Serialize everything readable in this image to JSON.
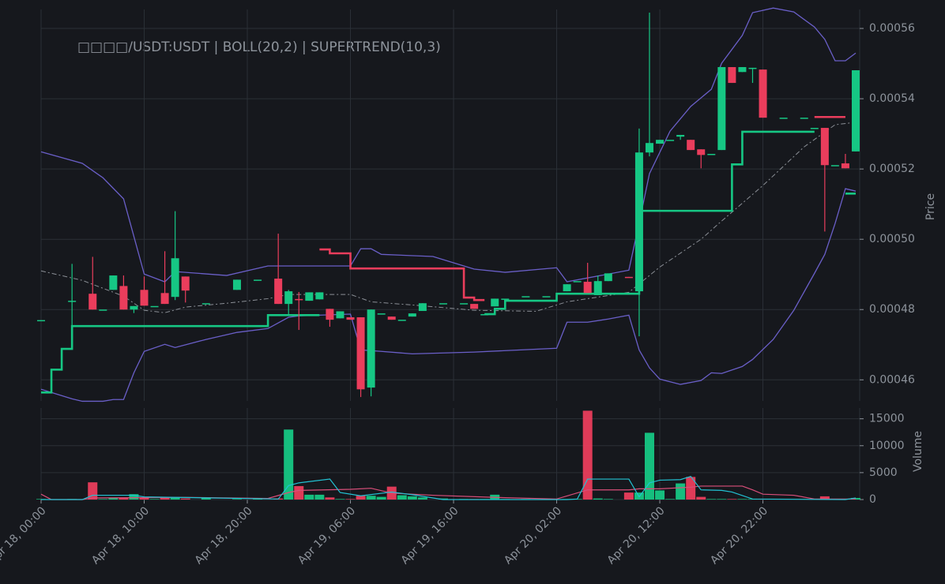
{
  "chart_data": {
    "type": "candlestick",
    "title": "□□□□/USDT:USDT | BOLL(20,2) | SUPERTREND(10,3)",
    "ylabel": "Price",
    "volume_label": "Volume",
    "up_color": "#16c784",
    "down_color": "#ea3d5c",
    "grid": true,
    "xlim": [
      "Apr 18, 00:00",
      "Apr 21, 07:00"
    ],
    "xticks": [
      "Apr 18, 00:00",
      "Apr 18, 10:00",
      "Apr 18, 20:00",
      "Apr 19, 06:00",
      "Apr 19, 16:00",
      "Apr 20, 02:00",
      "Apr 20, 12:00",
      "Apr 20, 22:00"
    ],
    "ylim": [
      0.000454,
      0.0005654
    ],
    "yticks": [
      0.00046,
      0.00048,
      {
        "value": 0.0005,
        "label": "0.00050"
      },
      0.00052,
      0.00054,
      0.00056
    ],
    "volume_ylim": [
      0,
      17000
    ],
    "volume_yticks": [
      0,
      5000,
      10000,
      15000
    ],
    "x": [
      "Apr 18, 00:00",
      "Apr 18, 03:00",
      "Apr 18, 05:00",
      "Apr 18, 06:00",
      "Apr 18, 07:00",
      "Apr 18, 08:00",
      "Apr 18, 09:00",
      "Apr 18, 10:00",
      "Apr 18, 11:00",
      "Apr 18, 12:00",
      "Apr 18, 13:00",
      "Apr 18, 14:00",
      "Apr 18, 16:00",
      "Apr 18, 19:00",
      "Apr 18, 21:00",
      "Apr 18, 23:00",
      "Apr 19, 00:00",
      "Apr 19, 01:00",
      "Apr 19, 02:00",
      "Apr 19, 03:00",
      "Apr 19, 04:00",
      "Apr 19, 05:00",
      "Apr 19, 06:00",
      "Apr 19, 07:00",
      "Apr 19, 08:00",
      "Apr 19, 09:00",
      "Apr 19, 10:00",
      "Apr 19, 11:00",
      "Apr 19, 12:00",
      "Apr 19, 13:00",
      "Apr 19, 15:00",
      "Apr 19, 17:00",
      "Apr 19, 18:00",
      "Apr 19, 19:00",
      "Apr 19, 20:00",
      "Apr 19, 21:00",
      "Apr 19, 23:00",
      "Apr 20, 01:00",
      "Apr 20, 03:00",
      "Apr 20, 04:00",
      "Apr 20, 05:00",
      "Apr 20, 06:00",
      "Apr 20, 07:00",
      "Apr 20, 09:00",
      "Apr 20, 10:00",
      "Apr 20, 11:00",
      "Apr 20, 12:00",
      "Apr 20, 13:00",
      "Apr 20, 14:00",
      "Apr 20, 15:00",
      "Apr 20, 16:00",
      "Apr 20, 17:00",
      "Apr 20, 18:00",
      "Apr 20, 19:00",
      "Apr 20, 20:00",
      "Apr 20, 21:00",
      "Apr 20, 22:00",
      "Apr 21, 00:00",
      "Apr 21, 02:00",
      "Apr 21, 03:00",
      "Apr 21, 04:00",
      "Apr 21, 05:00",
      "Apr 21, 06:00",
      "Apr 21, 07:00"
    ],
    "open": [
      0.000477,
      0.0004825,
      0.0004845,
      0.00048,
      0.0004856,
      0.0004867,
      0.00048,
      0.0004856,
      0.000481,
      0.0004847,
      0.0004836,
      0.0004894,
      0.0004818,
      0.0004856,
      0.0004885,
      0.0004888,
      0.0004816,
      0.000483,
      0.0004825,
      0.0004829,
      0.0004802,
      0.0004775,
      0.0004778,
      0.0004778,
      0.0004578,
      0.0004789,
      0.000478,
      0.0004771,
      0.000478,
      0.0004796,
      0.0004818,
      0.0004818,
      0.0004816,
      0.0004787,
      0.0004809,
      0.0004831,
      0.0004838,
      0.0004838,
      0.0004852,
      0.0004881,
      0.0004879,
      0.0004841,
      0.0004881,
      0.0004893,
      0.0004852,
      0.0005247,
      0.0005272,
      0.0005283,
      0.0005292,
      0.0005283,
      0.0005256,
      0.0005243,
      0.0005254,
      0.000549,
      0.0005476,
      0.0005485,
      0.0005483,
      0.0005346,
      0.0005346,
      0.0005317,
      0.0005317,
      0.0005211,
      0.0005216,
      0.000525
    ],
    "high": [
      0.000477,
      0.000493,
      0.000495,
      0.00048,
      0.0004897,
      0.0004897,
      0.000481,
      0.0004894,
      0.000481,
      0.0004966,
      0.000508,
      0.0004894,
      0.0004818,
      0.0004885,
      0.0004885,
      0.0005016,
      0.0004856,
      0.000485,
      0.0004849,
      0.0004849,
      0.0004802,
      0.0004795,
      0.0004778,
      0.0004778,
      0.00048,
      0.0004789,
      0.000478,
      0.0004771,
      0.0004789,
      0.0004818,
      0.0004818,
      0.0004818,
      0.0004816,
      0.0004787,
      0.0004831,
      0.0004831,
      0.0004838,
      0.0004838,
      0.0004872,
      0.0004881,
      0.0004933,
      0.0004897,
      0.0004903,
      0.0004893,
      0.0005315,
      0.0005645,
      0.0005283,
      0.0005283,
      0.0005297,
      0.0005283,
      0.0005256,
      0.0005243,
      0.000549,
      0.000549,
      0.000549,
      0.0005488,
      0.0005483,
      0.0005346,
      0.0005346,
      0.0005317,
      0.0005317,
      0.0005211,
      0.0005243,
      0.0005481
    ],
    "low": [
      0.000477,
      0.0004753,
      0.00048,
      0.00048,
      0.0004856,
      0.00048,
      0.000479,
      0.0004811,
      0.000481,
      0.0004816,
      0.0004827,
      0.000482,
      0.0004818,
      0.0004856,
      0.0004885,
      0.0004816,
      0.0004782,
      0.0004742,
      0.0004825,
      0.0004829,
      0.0004751,
      0.0004775,
      0.0004771,
      0.0004551,
      0.0004553,
      0.0004789,
      0.0004771,
      0.0004771,
      0.000478,
      0.0004796,
      0.0004818,
      0.0004818,
      0.0004802,
      0.0004787,
      0.0004809,
      0.0004831,
      0.0004838,
      0.0004838,
      0.0004852,
      0.0004881,
      0.0004847,
      0.0004841,
      0.0004881,
      0.0004892,
      0.0004724,
      0.0005236,
      0.0005272,
      0.0005283,
      0.0005283,
      0.0005254,
      0.0005202,
      0.0005243,
      0.0005254,
      0.0005445,
      0.0005476,
      0.0005445,
      0.0005346,
      0.0005346,
      0.0005346,
      0.0005317,
      0.0005022,
      0.0005211,
      0.0005202,
      0.000525
    ],
    "close": [
      0.000477,
      0.0004825,
      0.00048,
      0.00048,
      0.0004897,
      0.00048,
      0.000481,
      0.0004811,
      0.000481,
      0.0004816,
      0.0004946,
      0.0004854,
      0.0004818,
      0.0004885,
      0.0004885,
      0.0004816,
      0.0004852,
      0.0004829,
      0.0004849,
      0.0004849,
      0.0004771,
      0.0004795,
      0.0004771,
      0.0004573,
      0.00048,
      0.0004789,
      0.0004771,
      0.0004771,
      0.0004789,
      0.0004818,
      0.0004818,
      0.0004818,
      0.0004802,
      0.0004787,
      0.0004831,
      0.0004831,
      0.0004838,
      0.0004838,
      0.0004872,
      0.0004881,
      0.0004847,
      0.0004881,
      0.0004903,
      0.0004892,
      0.0005247,
      0.0005274,
      0.0005283,
      0.0005283,
      0.0005297,
      0.0005254,
      0.000524,
      0.0005243,
      0.000549,
      0.0005445,
      0.000549,
      0.0005488,
      0.0005346,
      0.0005346,
      0.0005346,
      0.0005317,
      0.0005211,
      0.0005211,
      0.0005202,
      0.0005481
    ],
    "volume": [
      100,
      100,
      3200,
      100,
      300,
      300,
      1000,
      300,
      100,
      400,
      400,
      200,
      300,
      100,
      100,
      200,
      13000,
      2500,
      900,
      900,
      400,
      100,
      100,
      700,
      700,
      500,
      2400,
      800,
      600,
      400,
      200,
      100,
      100,
      100,
      900,
      100,
      100,
      100,
      100,
      100,
      16500,
      200,
      100,
      1300,
      1300,
      12400,
      1700,
      100,
      3000,
      4200,
      500,
      100,
      100,
      100,
      100,
      100,
      100,
      100,
      100,
      100,
      600,
      100,
      100,
      300
    ],
    "overlays": [
      {
        "panel": "price",
        "color": "#6a5fc8",
        "dash": "none",
        "width": 1.3,
        "step": false,
        "x": [
          "Apr 18, 00:00",
          "Apr 18, 04:00",
          "Apr 18, 06:00",
          "Apr 18, 08:00",
          "Apr 18, 10:00",
          "Apr 18, 12:00",
          "Apr 18, 13:00",
          "Apr 18, 18:00",
          "Apr 18, 22:00",
          "Apr 19, 06:00",
          "Apr 19, 07:00",
          "Apr 19, 08:00",
          "Apr 19, 09:00",
          "Apr 19, 14:00",
          "Apr 19, 18:00",
          "Apr 19, 21:00",
          "Apr 20, 02:00",
          "Apr 20, 03:00",
          "Apr 20, 09:00",
          "Apr 20, 10:00",
          "Apr 20, 11:00",
          "Apr 20, 13:00",
          "Apr 20, 15:00",
          "Apr 20, 17:00",
          "Apr 20, 18:00",
          "Apr 20, 20:00",
          "Apr 20, 21:00",
          "Apr 20, 23:00",
          "Apr 21, 01:00",
          "Apr 21, 03:00",
          "Apr 21, 04:00",
          "Apr 21, 05:00",
          "Apr 21, 06:00",
          "Apr 21, 07:00"
        ],
        "values": [
          0.0005249,
          0.0005216,
          0.0005175,
          0.0005115,
          0.0004901,
          0.0004879,
          0.0004908,
          0.0004897,
          0.0004924,
          0.0004924,
          0.0004973,
          0.0004973,
          0.0004957,
          0.0004951,
          0.0004915,
          0.0004906,
          0.0004919,
          0.0004879,
          0.0004912,
          0.0005047,
          0.0005187,
          0.0005308,
          0.0005378,
          0.0005427,
          0.0005501,
          0.000558,
          0.0005645,
          0.0005658,
          0.0005647,
          0.0005604,
          0.0005569,
          0.0005508,
          0.0005508,
          0.000553
        ]
      },
      {
        "panel": "price",
        "color": "#8b8f96",
        "dash": "6 3 2 3",
        "width": 1,
        "step": false,
        "x": [
          "Apr 18, 00:00",
          "Apr 18, 04:00",
          "Apr 18, 08:00",
          "Apr 18, 10:00",
          "Apr 18, 12:00",
          "Apr 18, 14:00",
          "Apr 18, 18:00",
          "Apr 18, 22:00",
          "Apr 19, 00:00",
          "Apr 19, 06:00",
          "Apr 19, 08:00",
          "Apr 19, 12:00",
          "Apr 19, 18:00",
          "Apr 20, 00:00",
          "Apr 20, 03:00",
          "Apr 20, 09:00",
          "Apr 20, 12:00",
          "Apr 20, 16:00",
          "Apr 20, 18:00",
          "Apr 20, 22:00",
          "Apr 21, 02:00",
          "Apr 21, 05:00",
          "Apr 21, 07:00"
        ],
        "values": [
          0.000491,
          0.0004883,
          0.0004838,
          0.0004798,
          0.0004791,
          0.0004807,
          0.0004818,
          0.0004831,
          0.0004843,
          0.0004843,
          0.0004822,
          0.0004813,
          0.0004798,
          0.0004795,
          0.0004822,
          0.0004849,
          0.0004921,
          0.0005,
          0.0005052,
          0.0005153,
          0.0005263,
          0.0005326,
          0.0005333
        ]
      },
      {
        "panel": "price",
        "color": "#6a5fc8",
        "dash": "none",
        "width": 1.3,
        "step": false,
        "x": [
          "Apr 18, 00:00",
          "Apr 18, 03:00",
          "Apr 18, 04:00",
          "Apr 18, 06:00",
          "Apr 18, 07:00",
          "Apr 18, 08:00",
          "Apr 18, 09:00",
          "Apr 18, 10:00",
          "Apr 18, 12:00",
          "Apr 18, 13:00",
          "Apr 18, 16:00",
          "Apr 18, 19:00",
          "Apr 18, 22:00",
          "Apr 19, 00:00",
          "Apr 19, 01:00",
          "Apr 19, 06:00",
          "Apr 19, 07:00",
          "Apr 19, 09:00",
          "Apr 19, 12:00",
          "Apr 19, 18:00",
          "Apr 20, 02:00",
          "Apr 20, 03:00",
          "Apr 20, 05:00",
          "Apr 20, 07:00",
          "Apr 20, 09:00",
          "Apr 20, 10:00",
          "Apr 20, 11:00",
          "Apr 20, 12:00",
          "Apr 20, 14:00",
          "Apr 20, 16:00",
          "Apr 20, 17:00",
          "Apr 20, 18:00",
          "Apr 20, 20:00",
          "Apr 20, 21:00",
          "Apr 20, 23:00",
          "Apr 21, 01:00",
          "Apr 21, 03:00",
          "Apr 21, 04:00",
          "Apr 21, 05:00",
          "Apr 21, 06:00",
          "Apr 21, 07:00"
        ],
        "values": [
          0.0004573,
          0.0004546,
          0.0004539,
          0.0004539,
          0.0004544,
          0.0004544,
          0.000462,
          0.0004681,
          0.0004701,
          0.0004692,
          0.0004715,
          0.0004735,
          0.0004746,
          0.0004778,
          0.0004782,
          0.0004787,
          0.0004685,
          0.0004681,
          0.0004674,
          0.0004679,
          0.000469,
          0.0004764,
          0.0004764,
          0.0004773,
          0.0004784,
          0.0004685,
          0.0004634,
          0.0004602,
          0.0004587,
          0.0004598,
          0.000462,
          0.0004618,
          0.0004638,
          0.0004658,
          0.0004715,
          0.0004798,
          0.0004903,
          0.0004957,
          0.0005045,
          0.0005144,
          0.0005137
        ]
      },
      {
        "panel": "price",
        "color": "#16c784",
        "dash": "none",
        "width": 2.6,
        "step": true,
        "x": [
          "Apr 18, 00:00",
          "Apr 18, 01:00",
          "Apr 18, 02:00",
          "Apr 18, 03:00",
          "Apr 18, 22:00",
          "Apr 19, 03:00",
          "Apr 19, 04:00",
          "Apr 19, 19:00",
          "Apr 19, 20:00",
          "Apr 19, 21:00",
          "Apr 20, 02:00",
          "Apr 20, 10:00",
          "Apr 20, 19:00",
          "Apr 20, 20:00",
          "Apr 21, 03:00",
          "Apr 21, 04:00",
          "Apr 21, 06:00",
          "Apr 21, 07:00"
        ],
        "values": [
          0.0004564,
          0.0004629,
          0.0004688,
          0.0004753,
          0.0004784,
          0.0004784,
          null,
          0.0004787,
          0.0004802,
          0.0004825,
          0.0004845,
          0.0005081,
          0.0005213,
          0.0005306,
          0.0005306,
          null,
          0.000513,
          0.000513
        ]
      },
      {
        "panel": "price",
        "color": "#ea3d5c",
        "dash": "none",
        "width": 2.6,
        "step": true,
        "x": [
          "Apr 19, 03:00",
          "Apr 19, 04:00",
          "Apr 19, 06:00",
          "Apr 19, 17:00",
          "Apr 19, 18:00",
          "Apr 19, 19:00",
          "Apr 19, 20:00",
          "Apr 21, 03:00",
          "Apr 21, 06:00"
        ],
        "values": [
          0.0004971,
          0.000496,
          0.0004917,
          0.0004834,
          0.0004827,
          0.0004827,
          null,
          0.0005348,
          0.0005348
        ]
      },
      {
        "panel": "volume",
        "color": "#d94f7a",
        "dash": "none",
        "width": 1.2,
        "step": false,
        "x": [
          "Apr 18, 00:00",
          "Apr 18, 01:00",
          "Apr 18, 04:00",
          "Apr 18, 05:00",
          "Apr 18, 14:00",
          "Apr 18, 22:00",
          "Apr 19, 00:00",
          "Apr 19, 01:00",
          "Apr 19, 06:00",
          "Apr 19, 08:00",
          "Apr 19, 10:00",
          "Apr 19, 14:00",
          "Apr 19, 20:00",
          "Apr 20, 02:00",
          "Apr 20, 05:00",
          "Apr 20, 09:00",
          "Apr 20, 10:00",
          "Apr 20, 12:00",
          "Apr 20, 15:00",
          "Apr 20, 16:00",
          "Apr 20, 20:00",
          "Apr 20, 21:00",
          "Apr 20, 22:00",
          "Apr 21, 01:00",
          "Apr 21, 03:00",
          "Apr 21, 07:00"
        ],
        "values": [
          1000,
          0,
          0,
          300,
          400,
          200,
          1300,
          1700,
          1900,
          2100,
          1200,
          800,
          400,
          100,
          1800,
          1800,
          2000,
          2000,
          2300,
          2500,
          2500,
          1800,
          1000,
          800,
          100,
          100
        ]
      },
      {
        "panel": "volume",
        "color": "#22c3d4",
        "dash": "none",
        "width": 1.2,
        "step": false,
        "x": [
          "Apr 18, 00:00",
          "Apr 18, 04:00",
          "Apr 18, 05:00",
          "Apr 18, 09:00",
          "Apr 18, 10:00",
          "Apr 18, 23:00",
          "Apr 19, 00:00",
          "Apr 19, 01:00",
          "Apr 19, 04:00",
          "Apr 19, 05:00",
          "Apr 19, 07:00",
          "Apr 19, 10:00",
          "Apr 19, 12:00",
          "Apr 19, 15:00",
          "Apr 20, 03:00",
          "Apr 20, 04:00",
          "Apr 20, 05:00",
          "Apr 20, 09:00",
          "Apr 20, 10:00",
          "Apr 20, 11:00",
          "Apr 20, 12:00",
          "Apr 20, 14:00",
          "Apr 20, 15:00",
          "Apr 20, 16:00",
          "Apr 20, 18:00",
          "Apr 20, 19:00",
          "Apr 20, 21:00",
          "Apr 21, 06:00",
          "Apr 21, 07:00"
        ],
        "values": [
          0,
          0,
          800,
          800,
          500,
          100,
          2600,
          3100,
          3800,
          1300,
          700,
          1400,
          900,
          0,
          0,
          100,
          3800,
          3800,
          500,
          3100,
          3600,
          3700,
          4300,
          1800,
          1700,
          1400,
          100,
          0,
          300
        ]
      }
    ]
  }
}
